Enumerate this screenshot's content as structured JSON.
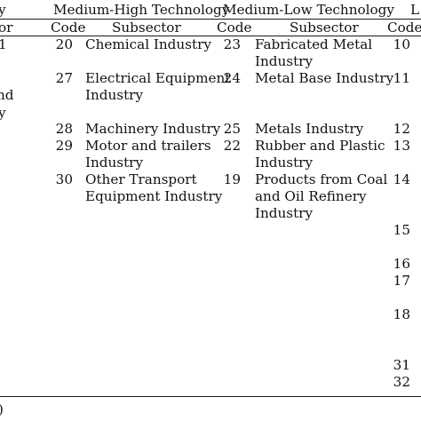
{
  "table": {
    "groups": {
      "high_partial": "y",
      "medium_high": "Medium-High Technology",
      "medium_low": "Medium-Low Technology",
      "low_partial": "L"
    },
    "subheaders": {
      "high_subsector_partial": "or",
      "code": "Code",
      "subsector": "Subsector"
    },
    "left_fragments": [
      "1",
      "nd",
      "y"
    ],
    "medium_high_rows": [
      {
        "code": "20",
        "subsector_lines": [
          "Chemical Industry"
        ]
      },
      {
        "code": "27",
        "subsector_lines": [
          "Electrical Equipment",
          "Industry"
        ]
      },
      {
        "code": "28",
        "subsector_lines": [
          "Machinery Industry"
        ]
      },
      {
        "code": "29",
        "subsector_lines": [
          "Motor and trailers",
          "Industry"
        ]
      },
      {
        "code": "30",
        "subsector_lines": [
          "Other Transport",
          "Equipment Industry"
        ]
      }
    ],
    "medium_low_rows": [
      {
        "code": "23",
        "subsector_lines": [
          "Fabricated Metal",
          "Industry"
        ]
      },
      {
        "code": "24",
        "subsector_lines": [
          "Metal Base Industry"
        ]
      },
      {
        "code": "25",
        "subsector_lines": [
          "Metals Industry"
        ]
      },
      {
        "code": "22",
        "subsector_lines": [
          "Rubber and Plastic",
          "Industry"
        ]
      },
      {
        "code": "19",
        "subsector_lines": [
          "Products from Coal",
          "and Oil Refinery",
          "Industry"
        ]
      }
    ],
    "low_codes": [
      "10",
      "11",
      "12",
      "13",
      "14",
      "15",
      "16",
      "17",
      "18",
      "31",
      "32"
    ],
    "footnote_partial": ")"
  }
}
